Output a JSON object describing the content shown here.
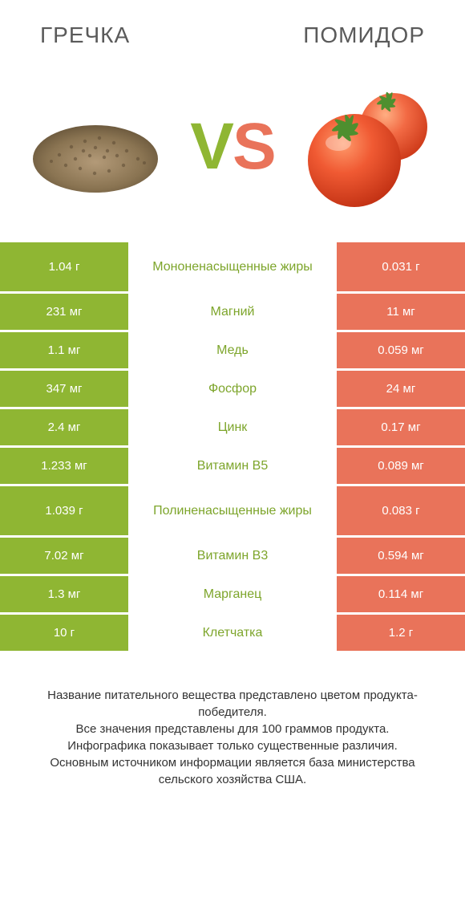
{
  "colors": {
    "green": "#8fb633",
    "orange": "#e9735a",
    "label_green": "#7da52b",
    "title": "#5a5a5a",
    "bg": "#ffffff"
  },
  "left_title": "ГРЕЧКА",
  "right_title": "ПОМИДОР",
  "vs": {
    "v": "V",
    "s": "S"
  },
  "rows": [
    {
      "left": "1.04 г",
      "label": "Мононенасыщенные жиры",
      "right": "0.031 г",
      "winner": "left",
      "tall": true
    },
    {
      "left": "231 мг",
      "label": "Магний",
      "right": "11 мг",
      "winner": "left"
    },
    {
      "left": "1.1 мг",
      "label": "Медь",
      "right": "0.059 мг",
      "winner": "left"
    },
    {
      "left": "347 мг",
      "label": "Фосфор",
      "right": "24 мг",
      "winner": "left"
    },
    {
      "left": "2.4 мг",
      "label": "Цинк",
      "right": "0.17 мг",
      "winner": "left"
    },
    {
      "left": "1.233 мг",
      "label": "Витамин B5",
      "right": "0.089 мг",
      "winner": "left"
    },
    {
      "left": "1.039 г",
      "label": "Полиненасыщенные жиры",
      "right": "0.083 г",
      "winner": "left",
      "tall": true
    },
    {
      "left": "7.02 мг",
      "label": "Витамин B3",
      "right": "0.594 мг",
      "winner": "left"
    },
    {
      "left": "1.3 мг",
      "label": "Марганец",
      "right": "0.114 мг",
      "winner": "left"
    },
    {
      "left": "10 г",
      "label": "Клетчатка",
      "right": "1.2 г",
      "winner": "left"
    }
  ],
  "footer": [
    "Название питательного вещества представлено цветом продукта-победителя.",
    "Все значения представлены для 100 граммов продукта.",
    "Инфографика показывает только существенные различия.",
    "Основным источником информации является база министерства сельского хозяйства США."
  ]
}
